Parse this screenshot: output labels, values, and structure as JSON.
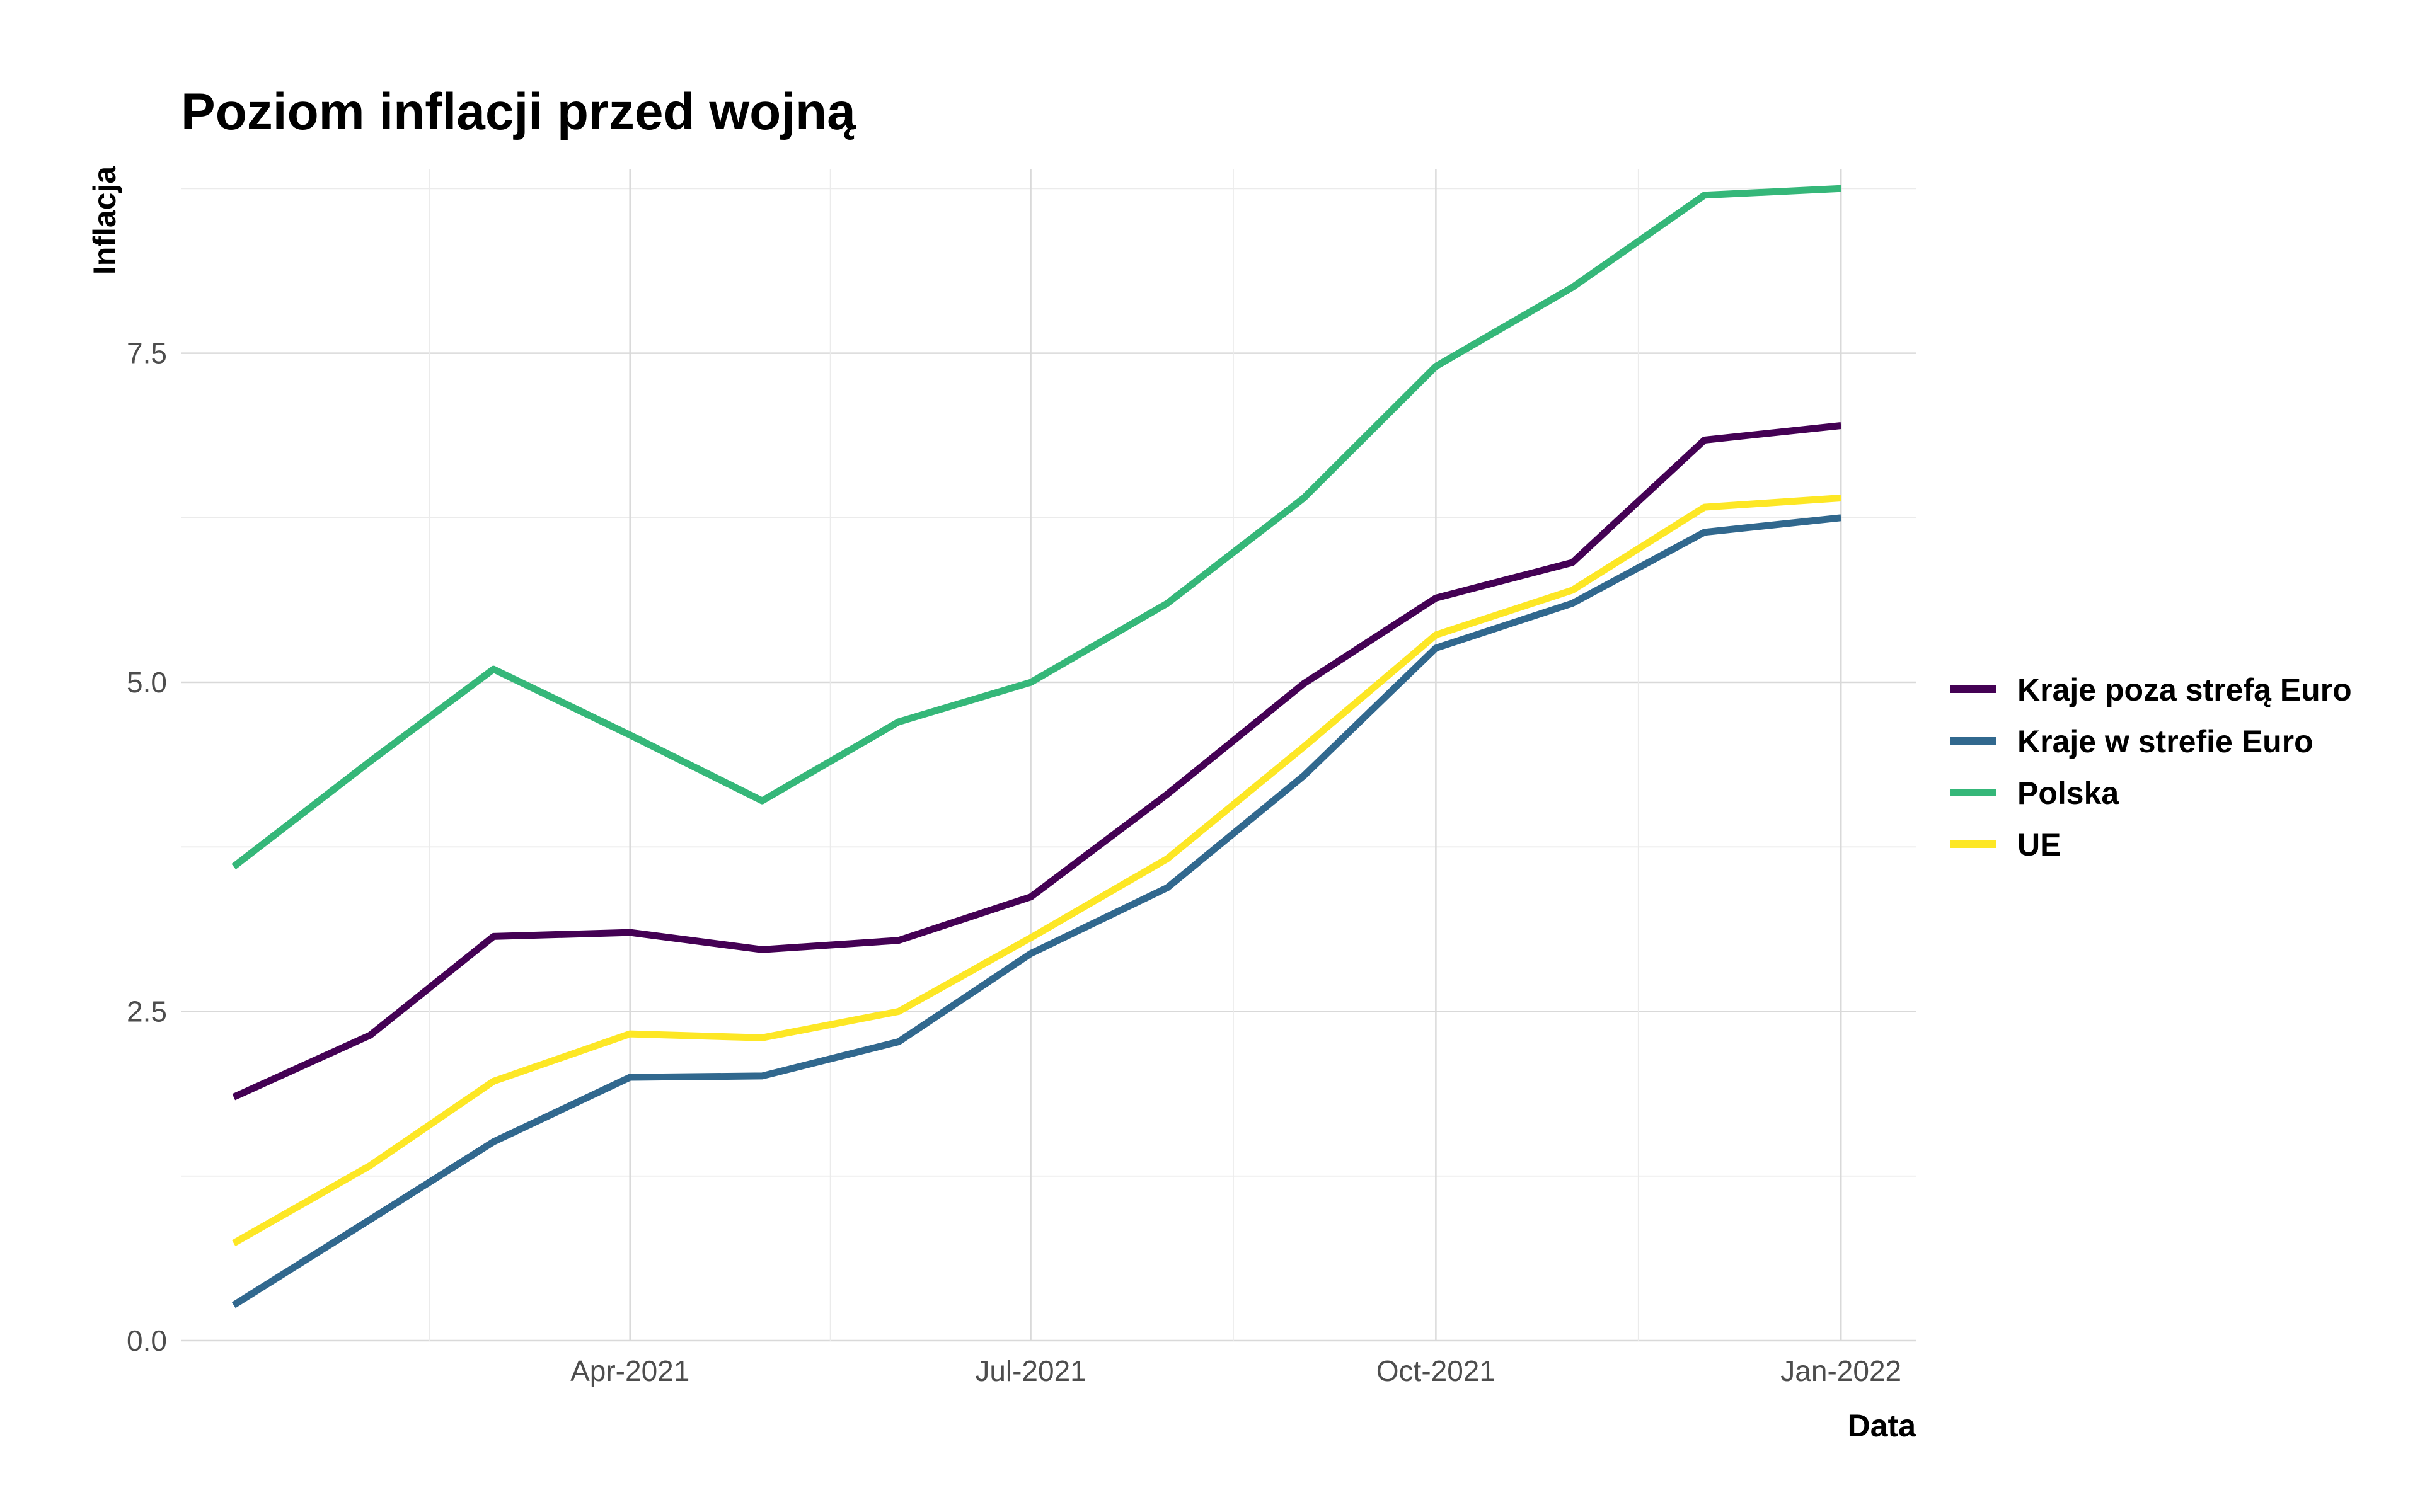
{
  "chart_data": {
    "type": "line",
    "title": "Poziom inflacji przed wojną",
    "xlabel": "Data",
    "ylabel": "Inflacja",
    "x": [
      "2021-01",
      "2021-02",
      "2021-03",
      "2021-04",
      "2021-05",
      "2021-06",
      "2021-07",
      "2021-08",
      "2021-09",
      "2021-10",
      "2021-11",
      "2021-12",
      "2022-01"
    ],
    "x_tick_labels": [
      "Apr-2021",
      "Jul-2021",
      "Oct-2021",
      "Jan-2022"
    ],
    "x_tick_dates": [
      "2021-04",
      "2021-07",
      "2021-10",
      "2022-01"
    ],
    "y_tick_labels": [
      "0.0",
      "2.5",
      "5.0",
      "7.5"
    ],
    "y_ticks": [
      0,
      2.5,
      5,
      7.5
    ],
    "ylim": [
      0,
      8.9
    ],
    "xlim": [
      "2020-12-20",
      "2022-01-18"
    ],
    "grid": true,
    "legend_position": "right",
    "series": [
      {
        "name": "Kraje poza strefą Euro",
        "color": "#440154",
        "values": [
          1.85,
          2.32,
          3.07,
          3.1,
          2.97,
          3.04,
          3.37,
          4.15,
          4.99,
          5.64,
          5.91,
          6.84,
          6.95
        ]
      },
      {
        "name": "Kraje w strefie Euro",
        "color": "#31688E",
        "values": [
          0.27,
          0.92,
          1.51,
          2.0,
          2.01,
          2.27,
          2.94,
          3.44,
          4.29,
          5.26,
          5.6,
          6.14,
          6.25
        ]
      },
      {
        "name": "Polska",
        "color": "#35B779",
        "values": [
          3.6,
          4.4,
          5.1,
          4.6,
          4.1,
          4.7,
          5.0,
          5.6,
          6.4,
          7.4,
          8.0,
          8.7,
          8.75
        ]
      },
      {
        "name": "UE",
        "color": "#FDE725",
        "values": [
          0.74,
          1.33,
          1.97,
          2.33,
          2.3,
          2.5,
          3.06,
          3.66,
          4.51,
          5.36,
          5.7,
          6.33,
          6.4
        ]
      }
    ]
  }
}
